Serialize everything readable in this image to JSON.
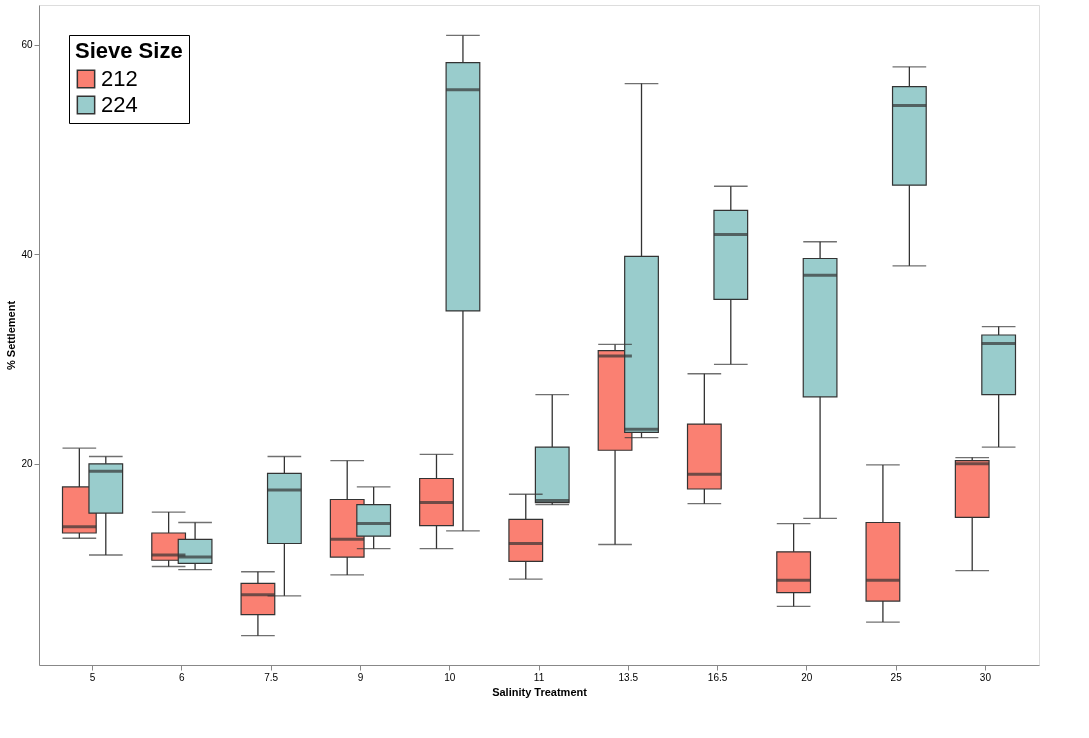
{
  "chart_data": {
    "type": "box",
    "xlabel": "Salinity Treatment",
    "ylabel": "% Settlement",
    "legend_title": "Sieve Size",
    "legend": "top left",
    "grid": false,
    "categories": [
      "5",
      "6",
      "7.5",
      "9",
      "10",
      "11",
      "13.5",
      "16.5",
      "20",
      "25",
      "30"
    ],
    "ylim": [
      0.8,
      63.8
    ],
    "yticks": [
      20,
      40,
      60
    ],
    "series": [
      {
        "name": "212",
        "color": "#fa8072",
        "boxes": [
          {
            "low": 12.9,
            "q1": 13.4,
            "median": 14.0,
            "q3": 17.8,
            "high": 21.5
          },
          {
            "low": 10.2,
            "q1": 10.8,
            "median": 11.3,
            "q3": 13.4,
            "high": 15.4
          },
          {
            "low": 3.6,
            "q1": 5.6,
            "median": 7.5,
            "q3": 8.6,
            "high": 9.7
          },
          {
            "low": 9.4,
            "q1": 11.1,
            "median": 12.8,
            "q3": 16.6,
            "high": 20.3
          },
          {
            "low": 11.9,
            "q1": 14.1,
            "median": 16.3,
            "q3": 18.6,
            "high": 20.9
          },
          {
            "low": 9.0,
            "q1": 10.7,
            "median": 12.4,
            "q3": 14.7,
            "high": 17.1
          },
          {
            "low": 12.3,
            "q1": 21.3,
            "median": 30.3,
            "q3": 30.8,
            "high": 31.4
          },
          {
            "low": 16.2,
            "q1": 17.6,
            "median": 19.0,
            "q3": 23.8,
            "high": 28.6
          },
          {
            "low": 6.4,
            "q1": 7.7,
            "median": 8.9,
            "q3": 11.6,
            "high": 14.3
          },
          {
            "low": 4.9,
            "q1": 6.9,
            "median": 8.9,
            "q3": 14.4,
            "high": 19.9
          },
          {
            "low": 9.8,
            "q1": 14.9,
            "median": 20.0,
            "q3": 20.3,
            "high": 20.6
          }
        ]
      },
      {
        "name": "224",
        "color": "#99cccc",
        "boxes": [
          {
            "low": 11.3,
            "q1": 15.3,
            "median": 19.3,
            "q3": 20.0,
            "high": 20.7
          },
          {
            "low": 9.9,
            "q1": 10.5,
            "median": 11.1,
            "q3": 12.8,
            "high": 14.4
          },
          {
            "low": 7.4,
            "q1": 12.4,
            "median": 17.5,
            "q3": 19.1,
            "high": 20.7
          },
          {
            "low": 11.9,
            "q1": 13.1,
            "median": 14.3,
            "q3": 16.1,
            "high": 17.8
          },
          {
            "low": 13.6,
            "q1": 34.6,
            "median": 55.7,
            "q3": 58.3,
            "high": 60.9
          },
          {
            "low": 16.1,
            "q1": 16.3,
            "median": 16.5,
            "q3": 21.6,
            "high": 26.6
          },
          {
            "low": 22.5,
            "q1": 23.0,
            "median": 23.3,
            "q3": 39.8,
            "high": 56.3
          },
          {
            "low": 29.5,
            "q1": 35.7,
            "median": 41.9,
            "q3": 44.2,
            "high": 46.5
          },
          {
            "low": 14.8,
            "q1": 26.4,
            "median": 38.0,
            "q3": 39.6,
            "high": 41.2
          },
          {
            "low": 38.9,
            "q1": 46.6,
            "median": 54.2,
            "q3": 56.0,
            "high": 57.9
          },
          {
            "low": 21.6,
            "q1": 26.6,
            "median": 31.5,
            "q3": 32.3,
            "high": 33.1
          }
        ]
      }
    ]
  }
}
